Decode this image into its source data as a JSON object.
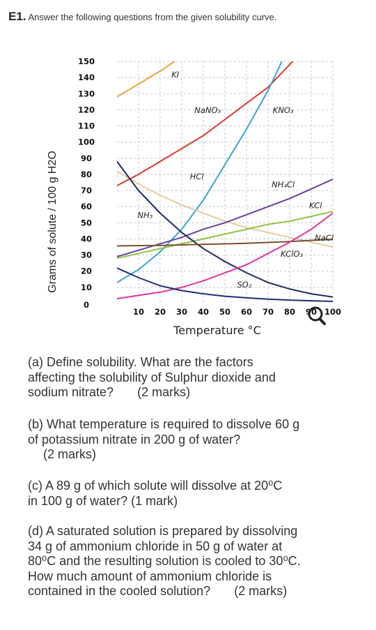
{
  "header": {
    "number": "E1.",
    "instruction": "Answer the following questions from the given solubility curve."
  },
  "chart_data": {
    "type": "line",
    "ylabel": "Grams of solute / 100 g H2O",
    "xlabel": "Temperature °C",
    "y_ticks": [
      "0",
      "10",
      "20",
      "30",
      "40",
      "50",
      "60",
      "70",
      "80",
      "90",
      "100",
      "110",
      "120",
      "130",
      "140",
      "150"
    ],
    "x_ticks": [
      "10",
      "20",
      "30",
      "40",
      "50",
      "60",
      "70",
      "80",
      "90",
      "100"
    ],
    "xlim": [
      0,
      100
    ],
    "ylim": [
      0,
      150
    ],
    "grid": true,
    "series": [
      {
        "name": "KI",
        "color": "#e8a440",
        "points": [
          [
            0,
            128
          ],
          [
            20,
            144
          ],
          [
            40,
            162
          ]
        ]
      },
      {
        "name": "NaNO3",
        "color": "#d93a2b",
        "points": [
          [
            0,
            73
          ],
          [
            10,
            80
          ],
          [
            20,
            88
          ],
          [
            30,
            96
          ],
          [
            40,
            104
          ],
          [
            50,
            114
          ],
          [
            60,
            124
          ],
          [
            70,
            134
          ],
          [
            80,
            148
          ],
          [
            85,
            155
          ]
        ]
      },
      {
        "name": "KNO3",
        "color": "#3ba3d8",
        "points": [
          [
            0,
            13
          ],
          [
            10,
            21
          ],
          [
            20,
            32
          ],
          [
            30,
            46
          ],
          [
            40,
            64
          ],
          [
            50,
            86
          ],
          [
            60,
            108
          ],
          [
            70,
            132
          ],
          [
            75,
            146
          ],
          [
            78,
            155
          ]
        ]
      },
      {
        "name": "HCl",
        "color": "#e6c9a3",
        "points": [
          [
            0,
            82
          ],
          [
            10,
            74
          ],
          [
            20,
            67
          ],
          [
            30,
            61
          ],
          [
            40,
            56
          ],
          [
            50,
            51
          ],
          [
            60,
            47
          ],
          [
            70,
            44
          ],
          [
            80,
            41
          ],
          [
            90,
            38
          ],
          [
            100,
            35
          ]
        ]
      },
      {
        "name": "NH4Cl",
        "color": "#6b3fa0",
        "points": [
          [
            0,
            29
          ],
          [
            10,
            33
          ],
          [
            20,
            37
          ],
          [
            30,
            41
          ],
          [
            40,
            46
          ],
          [
            50,
            50
          ],
          [
            60,
            55
          ],
          [
            70,
            60
          ],
          [
            80,
            65
          ],
          [
            90,
            71
          ],
          [
            100,
            77
          ]
        ]
      },
      {
        "name": "KCl",
        "color": "#8cc63f",
        "points": [
          [
            0,
            28
          ],
          [
            10,
            31
          ],
          [
            20,
            34
          ],
          [
            30,
            37
          ],
          [
            40,
            40
          ],
          [
            50,
            43
          ],
          [
            60,
            46
          ],
          [
            70,
            49
          ],
          [
            80,
            51
          ],
          [
            90,
            54
          ],
          [
            100,
            57
          ]
        ]
      },
      {
        "name": "NH3",
        "color": "#1f2a5a",
        "points": [
          [
            0,
            88
          ],
          [
            10,
            70
          ],
          [
            20,
            56
          ],
          [
            30,
            44
          ],
          [
            40,
            34
          ],
          [
            50,
            26
          ],
          [
            60,
            19
          ],
          [
            70,
            13
          ],
          [
            80,
            9
          ],
          [
            90,
            6
          ],
          [
            100,
            4
          ]
        ]
      },
      {
        "name": "NaCl",
        "color": "#7a5230",
        "points": [
          [
            0,
            35.7
          ],
          [
            20,
            36
          ],
          [
            40,
            36.6
          ],
          [
            60,
            37.3
          ],
          [
            80,
            38.4
          ],
          [
            100,
            39.8
          ]
        ]
      },
      {
        "name": "KClO3",
        "color": "#e0339b",
        "points": [
          [
            0,
            3
          ],
          [
            10,
            5
          ],
          [
            20,
            7
          ],
          [
            30,
            10
          ],
          [
            40,
            14
          ],
          [
            50,
            19
          ],
          [
            60,
            24
          ],
          [
            70,
            31
          ],
          [
            80,
            38
          ],
          [
            90,
            46
          ],
          [
            100,
            56
          ]
        ]
      },
      {
        "name": "SO2",
        "color": "#1c2f73",
        "points": [
          [
            0,
            22
          ],
          [
            10,
            16
          ],
          [
            20,
            11
          ],
          [
            30,
            8
          ],
          [
            40,
            6
          ],
          [
            50,
            4.5
          ],
          [
            60,
            3.5
          ],
          [
            70,
            2.7
          ],
          [
            80,
            2.1
          ],
          [
            90,
            1.7
          ],
          [
            100,
            1.3
          ]
        ]
      }
    ],
    "series_labels": [
      {
        "text": "KI",
        "x": 27,
        "y": 140
      },
      {
        "text": "NaNO₃",
        "x": 42,
        "y": 118
      },
      {
        "text": "KNO₃",
        "x": 77,
        "y": 118
      },
      {
        "text": "HCl",
        "x": 37,
        "y": 77
      },
      {
        "text": "NH₄Cl",
        "x": 77,
        "y": 72
      },
      {
        "text": "KCl",
        "x": 92,
        "y": 59
      },
      {
        "text": "NH₃",
        "x": 13,
        "y": 53
      },
      {
        "text": "NaCl",
        "x": 96,
        "y": 39
      },
      {
        "text": "KClO₃",
        "x": 81,
        "y": 29
      },
      {
        "text": "SO₂",
        "x": 59,
        "y": 10
      }
    ]
  },
  "questions": {
    "a_line1": "(a)  Define solubility. What are the factors",
    "a_line2": "affecting the solubility of Sulphur dioxide and",
    "a_line3": "sodium nitrate?",
    "a_marks": "(2 marks)",
    "b_line1": "(b)  What temperature is required to dissolve 60 g",
    "b_line2": "of potassium nitrate in 200 g of water?",
    "b_marks": "(2 marks)",
    "c_line1": "(c)   A 89 g of which solute will dissolve at 20⁰C",
    "c_line2": "in 100 g of water? (1 mark)",
    "d_line1": "(d)  A saturated solution is prepared by dissolving",
    "d_line2": "34 g of ammonium chloride in 50 g of water at",
    "d_line3": "80⁰C and the resulting solution is cooled to 30⁰C.",
    "d_line4": "How much amount of ammonium chloride is",
    "d_line5": "contained in the cooled solution?",
    "d_marks": "(2 marks)"
  }
}
